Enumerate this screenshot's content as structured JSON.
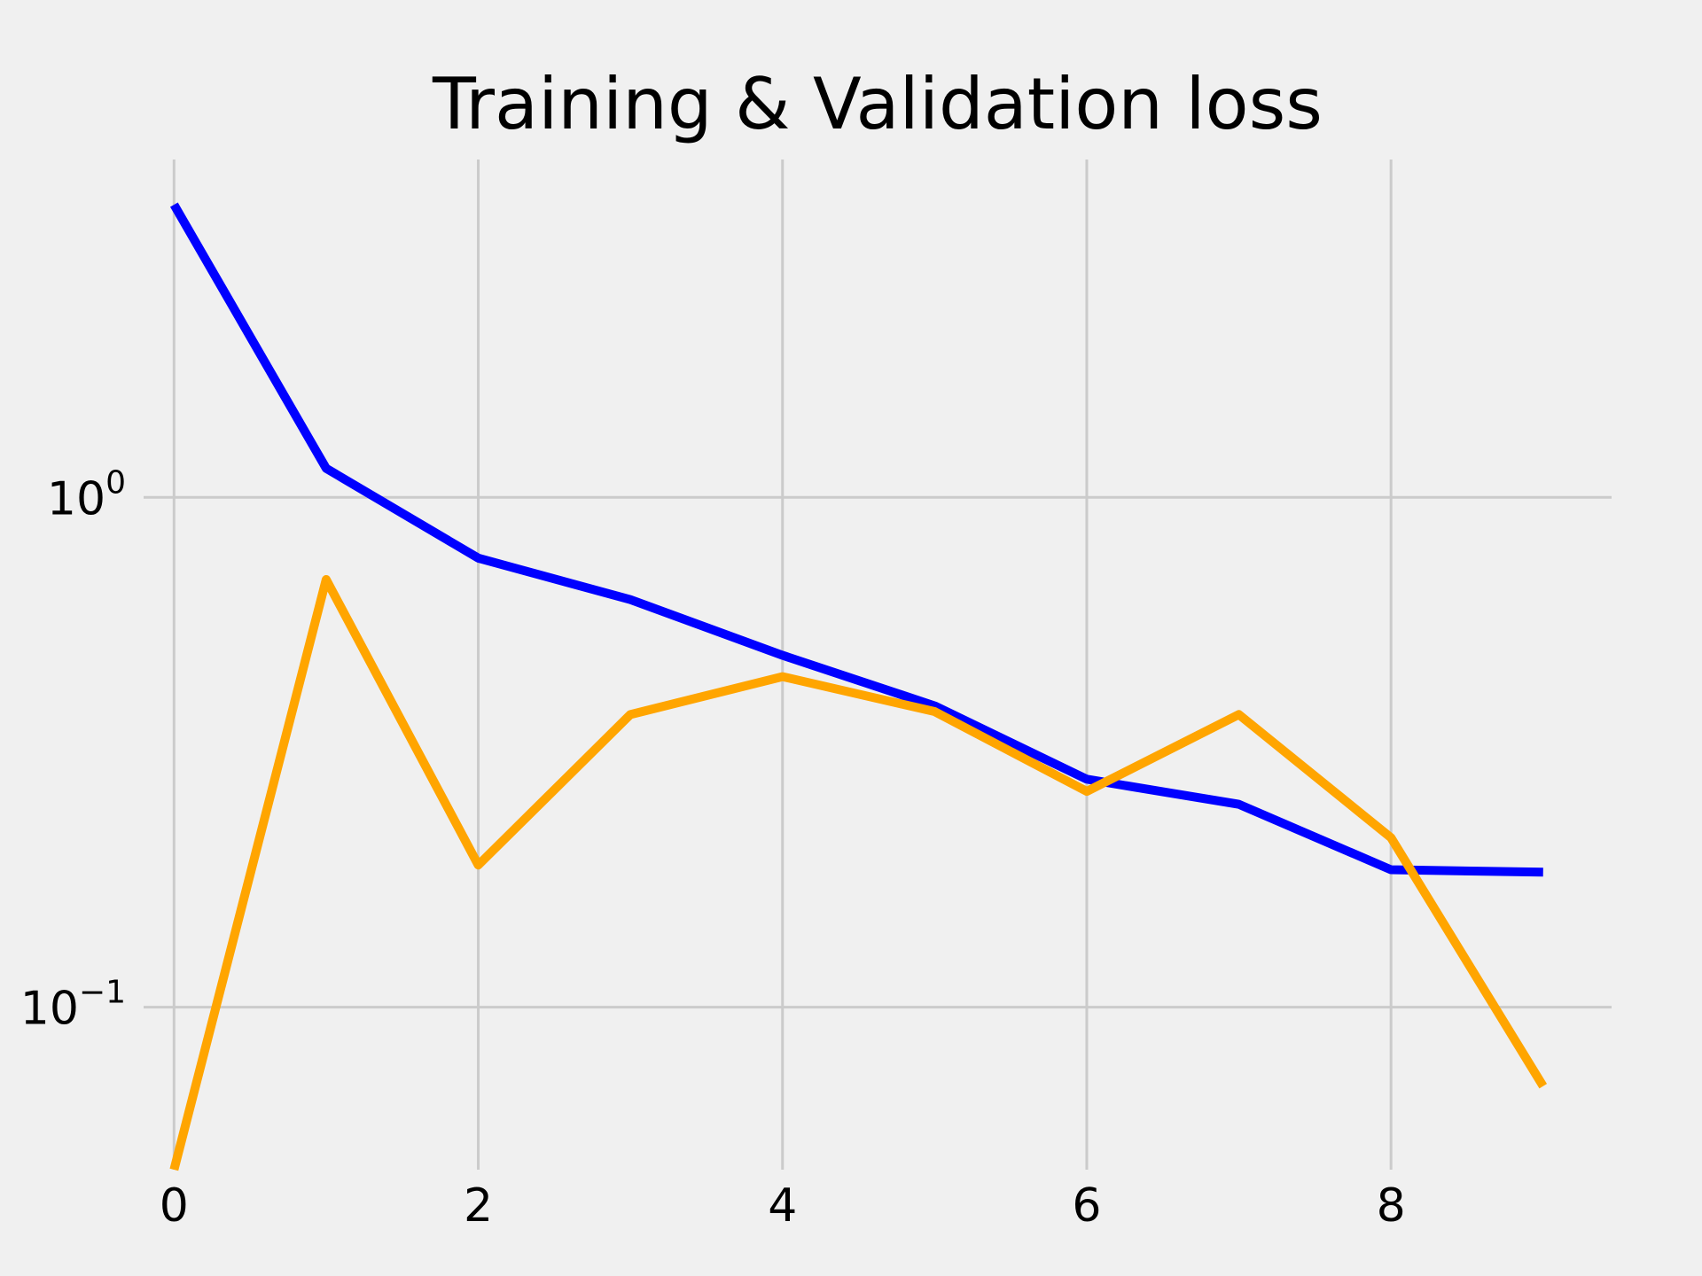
{
  "chart_data": {
    "type": "line",
    "title": "Training & Validation loss",
    "xlabel": "",
    "ylabel": "",
    "x": [
      0,
      1,
      2,
      3,
      4,
      5,
      6,
      7,
      8,
      9
    ],
    "xlim": [
      -0.2,
      9.45
    ],
    "ylim": [
      0.048,
      4.6
    ],
    "yscale": "log",
    "x_ticks": [
      0,
      2,
      4,
      6,
      8
    ],
    "x_tick_labels": [
      "0",
      "2",
      "4",
      "6",
      "8"
    ],
    "y_ticks": [
      1,
      0.1
    ],
    "y_tick_labels": [
      {
        "base": "10",
        "exp": "0"
      },
      {
        "base": "10",
        "exp": "−1"
      }
    ],
    "grid": true,
    "series": [
      {
        "color": "#0000ff",
        "values": [
          3.75,
          1.14,
          0.76,
          0.63,
          0.49,
          0.39,
          0.28,
          0.25,
          0.186,
          0.184
        ]
      },
      {
        "color": "#ffa500",
        "values": [
          0.048,
          0.69,
          0.19,
          0.375,
          0.445,
          0.38,
          0.265,
          0.375,
          0.215,
          0.07
        ]
      }
    ]
  }
}
